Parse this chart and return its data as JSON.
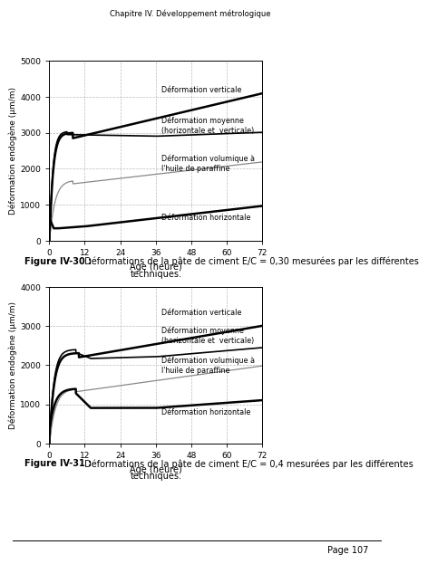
{
  "header": "Chapitre IV. Développement métrologique",
  "footer": "Page 107",
  "ylabel": "Déformation endogène (µm/m)",
  "xlabel": "Age (heure)",
  "xlim": [
    0,
    72
  ],
  "fig1_ylim": [
    0,
    5000
  ],
  "fig2_ylim": [
    0,
    4000
  ],
  "xticks": [
    0,
    12,
    24,
    36,
    48,
    60,
    72
  ],
  "fig1_yticks": [
    0,
    1000,
    2000,
    3000,
    4000,
    5000
  ],
  "fig2_yticks": [
    0,
    1000,
    2000,
    3000,
    4000
  ],
  "label_verticale": "Déformation verticale",
  "label_moyenne": "Déformation moyenne\n(horizontale et  verticale)",
  "label_volumique": "Déformation volumique à\nl'huile de paraffine",
  "label_horizontale": "Déformation horizontale",
  "cap1_bold": "Figure IV-30 :",
  "cap1_text": " Déformations de la pâte de ciment E/C = 0,30 mesurées par les différentes",
  "cap1_text2": "techniques.",
  "cap2_bold": "Figure IV-31 :",
  "cap2_text": " Déformations de la pâte de ciment E/C = 0,4 mesurées par les différentes",
  "cap2_text2": "techniques.",
  "background": "#ffffff"
}
